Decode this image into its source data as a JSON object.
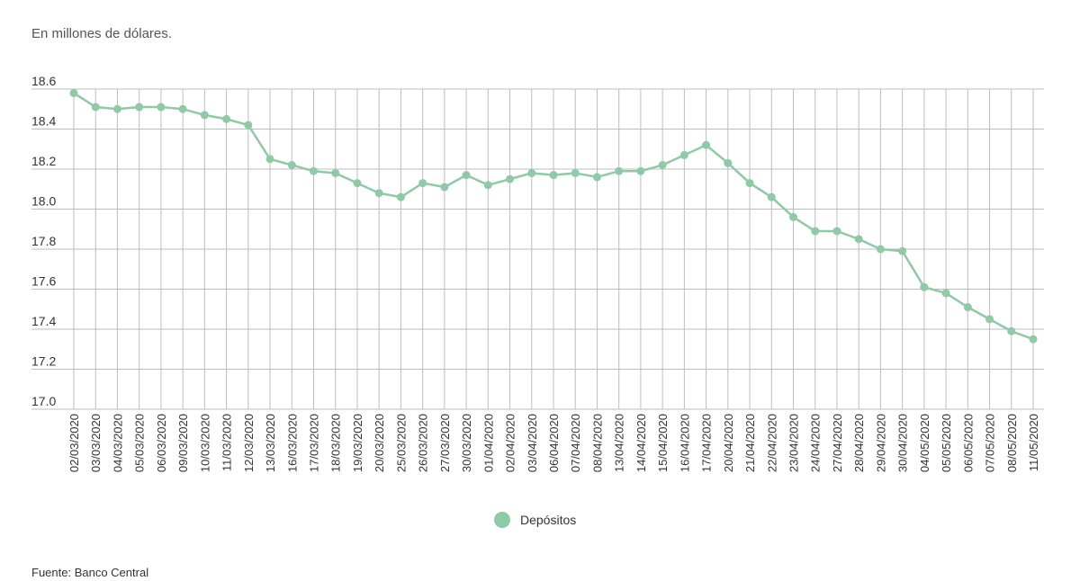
{
  "chart_data": {
    "type": "line",
    "subtitle": "En millones de dólares.",
    "source": "Fuente: Banco Central",
    "categories": [
      "02/03/2020",
      "03/03/2020",
      "04/03/2020",
      "05/03/2020",
      "06/03/2020",
      "09/03/2020",
      "10/03/2020",
      "11/03/2020",
      "12/03/2020",
      "13/03/2020",
      "16/03/2020",
      "17/03/2020",
      "18/03/2020",
      "19/03/2020",
      "20/03/2020",
      "25/03/2020",
      "26/03/2020",
      "27/03/2020",
      "30/03/2020",
      "01/04/2020",
      "02/04/2020",
      "03/04/2020",
      "06/04/2020",
      "07/04/2020",
      "08/04/2020",
      "13/04/2020",
      "14/04/2020",
      "15/04/2020",
      "16/04/2020",
      "17/04/2020",
      "20/04/2020",
      "21/04/2020",
      "22/04/2020",
      "23/04/2020",
      "24/04/2020",
      "27/04/2020",
      "28/04/2020",
      "29/04/2020",
      "30/04/2020",
      "04/05/2020",
      "05/05/2020",
      "06/05/2020",
      "07/05/2020",
      "08/05/2020",
      "11/05/2020"
    ],
    "series": [
      {
        "name": "Depósitos",
        "color": "#8fc9a6",
        "values": [
          18.58,
          18.51,
          18.5,
          18.51,
          18.51,
          18.5,
          18.47,
          18.45,
          18.42,
          18.25,
          18.22,
          18.19,
          18.18,
          18.13,
          18.08,
          18.06,
          18.13,
          18.11,
          18.17,
          18.12,
          18.15,
          18.18,
          18.17,
          18.18,
          18.16,
          18.19,
          18.19,
          18.22,
          18.27,
          18.32,
          18.23,
          18.13,
          18.06,
          17.96,
          17.89,
          17.89,
          17.85,
          17.8,
          17.79,
          17.61,
          17.58,
          17.51,
          17.45,
          17.39,
          17.35
        ]
      }
    ],
    "ylim": [
      17.0,
      18.6
    ],
    "yticks": [
      {
        "value": 17,
        "label": "17.0"
      },
      17.2,
      17.4,
      17.6,
      17.8,
      {
        "value": 18,
        "label": "18.0"
      },
      18.2,
      18.4,
      18.6
    ],
    "grid": true
  }
}
